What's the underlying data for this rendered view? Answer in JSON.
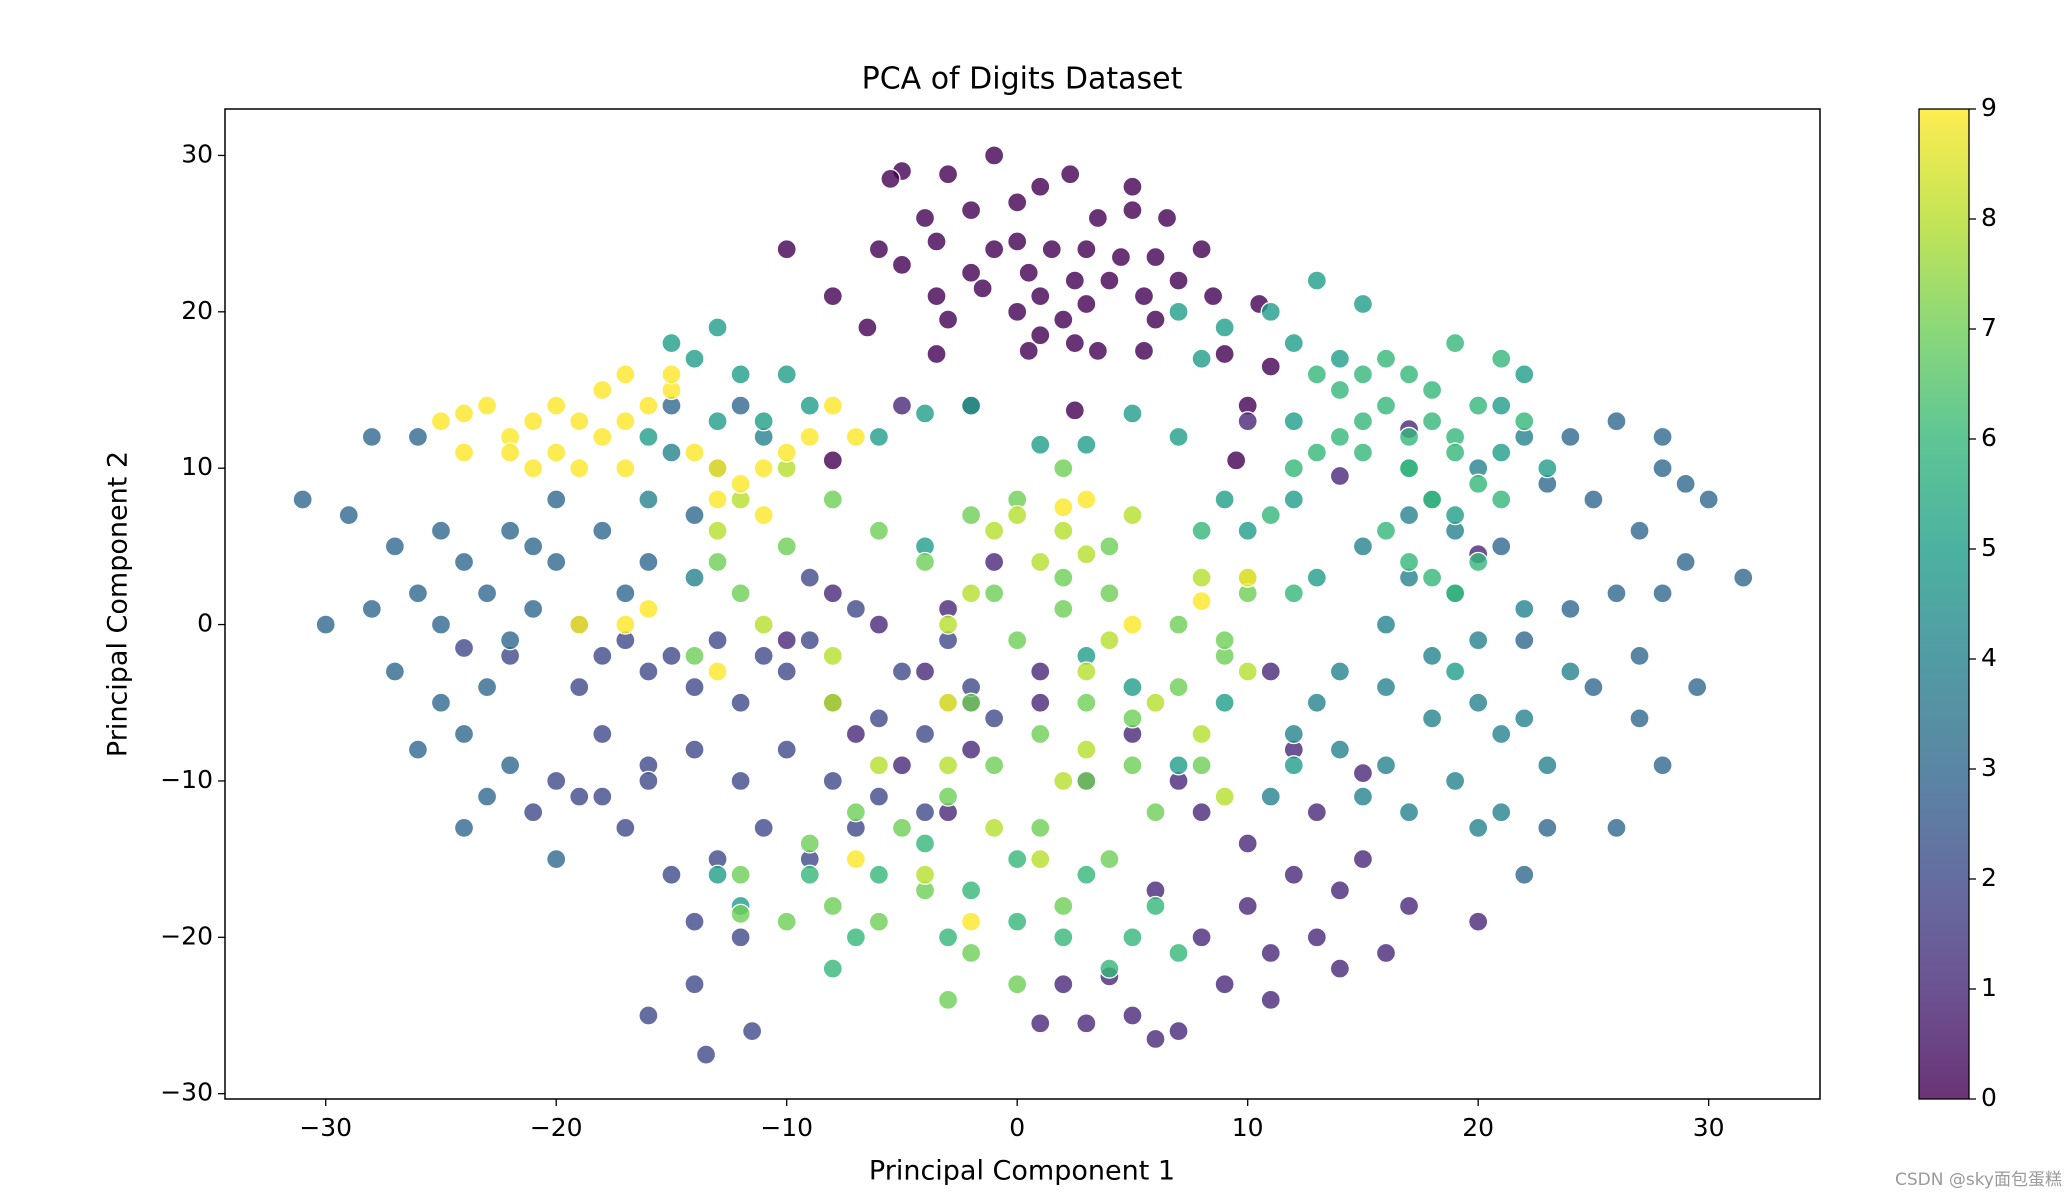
{
  "chart_data": {
    "type": "scatter",
    "title": "PCA of Digits Dataset",
    "xlabel": "Principal Component 1",
    "ylabel": "Principal Component 2",
    "watermark": "CSDN @sky面包蛋糕",
    "colormap": "viridis",
    "alpha": 0.8,
    "edgecolor": "#ffffff",
    "xlim": [
      -34.37,
      34.83
    ],
    "ylim": [
      -30.34,
      32.97
    ],
    "xticks": [
      {
        "value": -30,
        "label": "−30"
      },
      {
        "value": -20,
        "label": "−20"
      },
      {
        "value": -10,
        "label": "−10"
      },
      0,
      10,
      20,
      30
    ],
    "yticks": [
      {
        "value": -30,
        "label": "−30"
      },
      {
        "value": -20,
        "label": "−20"
      },
      {
        "value": -10,
        "label": "−10"
      },
      0,
      10,
      20,
      30
    ],
    "clim": [
      0,
      9
    ],
    "cticks": [
      0,
      1,
      2,
      3,
      4,
      5,
      6,
      7,
      8,
      9
    ],
    "series": [
      {
        "c": 0,
        "x": [
          -5,
          -5.5,
          -3,
          -1,
          1,
          2.3,
          5,
          0,
          -4,
          -2,
          3.5,
          5,
          6.5,
          -10,
          -6,
          -3.5,
          -1,
          0,
          1.5,
          3,
          4.5,
          6,
          8,
          -5,
          -2,
          0.5,
          2.5,
          4,
          7,
          -8,
          -3.5,
          -1.5,
          1,
          3,
          5.5,
          8.5,
          -6.5,
          -3,
          0,
          2,
          6,
          10.5,
          -3.5,
          0.5,
          3.5,
          5.5,
          9,
          11,
          1,
          2.5,
          -2,
          2.5,
          10,
          9.5,
          -8
        ],
        "values": [
          29,
          28.5,
          28.8,
          30,
          28,
          28.8,
          28,
          27,
          26,
          26.5,
          26,
          26.5,
          26,
          24,
          24,
          24.5,
          24,
          24.5,
          24,
          24,
          23.5,
          23.5,
          24,
          23,
          22.5,
          22.5,
          22,
          22,
          22,
          21,
          21,
          21.5,
          21,
          20.5,
          21,
          21,
          19,
          19.5,
          20,
          19.5,
          19.5,
          20.5,
          17.3,
          17.5,
          17.5,
          17.5,
          17.3,
          16.5,
          18.5,
          18,
          14,
          13.7,
          14,
          10.5,
          10.5
        ]
      },
      {
        "c": 1,
        "x": [
          1,
          3,
          5,
          7,
          8,
          10,
          12,
          6,
          8,
          10,
          11,
          9,
          11,
          5,
          6,
          7,
          4,
          3,
          1,
          2,
          13,
          14,
          15,
          17,
          20,
          16,
          14,
          -2,
          -4,
          -3,
          -1,
          -6,
          -8,
          -10,
          -5,
          -7,
          -3,
          11,
          12,
          13,
          15,
          20,
          14,
          17,
          10,
          -5,
          -2,
          1
        ],
        "values": [
          -5,
          -10,
          -7,
          -10,
          -12,
          -14,
          -16,
          -17,
          -20,
          -18,
          -21,
          -23,
          -24,
          -25,
          -26.5,
          -26,
          -22.5,
          -25.5,
          -25.5,
          -23,
          -20,
          -17,
          -15,
          -18,
          -19,
          -21,
          -22,
          -5,
          -3,
          1,
          4,
          0,
          2,
          -1,
          -9,
          -7,
          -12,
          -3,
          -8,
          -12,
          -9.5,
          4.5,
          9.5,
          12.5,
          13,
          14,
          -8,
          -3
        ]
      },
      {
        "c": 2,
        "x": [
          -20,
          -18,
          -16,
          -14,
          -12,
          -10,
          -8,
          -6,
          -4,
          -2,
          -12,
          -14,
          -16,
          -18,
          -10,
          -8,
          -6,
          -4,
          -11,
          -13,
          -15,
          -17,
          -19,
          -21,
          -9,
          -7,
          -15,
          -13,
          -11,
          -19,
          -24,
          -22,
          -17,
          -9,
          -5,
          -3,
          -1,
          -14,
          -12,
          -14,
          -16,
          -13.5,
          -11.5,
          -16,
          -18,
          -7,
          -9
        ],
        "values": [
          -10,
          -11,
          -9,
          -8,
          -10,
          -8,
          -10,
          -6,
          -7,
          -4,
          -5,
          -4,
          -3,
          -2,
          -3,
          -5,
          -11,
          -12,
          -13,
          -15,
          -16,
          -13,
          -11,
          -12,
          -15,
          -13,
          -2,
          -1,
          -2,
          -4,
          -1.5,
          -2,
          -1,
          -1,
          -3,
          -1,
          -6,
          -19,
          -20,
          -23,
          -25,
          -27.5,
          -26,
          -10,
          -7,
          1,
          3
        ]
      },
      {
        "c": 3,
        "x": [
          -31,
          -30,
          -29,
          -28,
          -26,
          -27,
          -25,
          -24,
          -26,
          -28,
          -25,
          -23,
          -22,
          -21,
          -20,
          -22,
          -20,
          -18,
          -17,
          -19,
          -23,
          -25,
          -27,
          -24,
          -22,
          -23,
          -24,
          -20,
          -26,
          -21,
          -16,
          -14,
          -15,
          -12,
          22,
          24,
          26,
          28,
          29,
          27,
          25,
          23,
          28,
          30,
          31.5,
          25,
          27,
          29.5,
          26,
          28,
          23,
          22,
          21,
          24,
          26,
          28,
          29,
          27
        ],
        "values": [
          8,
          0,
          7,
          12,
          12,
          5,
          6,
          4,
          2,
          1,
          0,
          2,
          -1,
          1,
          4,
          6,
          8,
          6,
          2,
          0,
          -4,
          -5,
          -3,
          -7,
          -9,
          -11,
          -13,
          -15,
          -8,
          5,
          4,
          7,
          14,
          14,
          -1,
          1,
          2,
          2,
          4,
          6,
          8,
          9,
          10,
          8,
          3,
          -4,
          -6,
          -4,
          -13,
          -9,
          -13,
          -16,
          5,
          12,
          13,
          12,
          9,
          -2
        ]
      },
      {
        "c": 4,
        "x": [
          15,
          17,
          19,
          16,
          18,
          20,
          22,
          16,
          18,
          20,
          21,
          23,
          19,
          17,
          15,
          20,
          22,
          24,
          13,
          14,
          16,
          18,
          20,
          22,
          17,
          19,
          -14,
          -13,
          -11,
          -15,
          -16,
          11,
          14,
          21,
          12
        ],
        "values": [
          5,
          3,
          2,
          0,
          -2,
          -1,
          1,
          -4,
          -6,
          -5,
          -7,
          -9,
          -10,
          -12,
          -11,
          -13,
          -6,
          -3,
          -5,
          -8,
          -9,
          8,
          10,
          12,
          7,
          6,
          3,
          10,
          12,
          11,
          8,
          -11,
          -3,
          -12,
          -7
        ]
      },
      {
        "c": 5,
        "x": [
          -13,
          -12,
          -14,
          -15,
          -10,
          -9,
          -11,
          -13,
          -16,
          -4,
          -2,
          -6,
          1,
          3,
          5,
          7,
          9,
          10,
          12,
          11,
          12,
          14,
          13,
          15,
          9,
          8,
          7,
          12,
          17,
          19,
          21,
          23,
          22,
          21,
          3,
          5,
          -3,
          -4,
          7,
          9,
          13,
          12,
          19,
          -13,
          -12
        ],
        "values": [
          19,
          16,
          17,
          18,
          16,
          14,
          13,
          13,
          12,
          13.5,
          14,
          12,
          11.5,
          11.5,
          13.5,
          12,
          8,
          6,
          8,
          20,
          18,
          17,
          22,
          20.5,
          19,
          17,
          20,
          13,
          10,
          7,
          11,
          10,
          16,
          14,
          -2,
          -4,
          -5,
          5,
          -9,
          -5,
          3,
          -9,
          -3,
          -16,
          -18
        ]
      },
      {
        "c": 6,
        "x": [
          13,
          14,
          15,
          16,
          17,
          18,
          19,
          16,
          15,
          14,
          13,
          15,
          17,
          18,
          19,
          20,
          21,
          22,
          17,
          18,
          19,
          20,
          21,
          16,
          17,
          18,
          19,
          20,
          12,
          11,
          8,
          10,
          12,
          -4,
          -2,
          0,
          2,
          4,
          6,
          -7,
          -8,
          -9,
          -6,
          -3,
          0,
          3,
          5,
          7
        ],
        "values": [
          16,
          15,
          16,
          17,
          16,
          15,
          18,
          14,
          13,
          12,
          11,
          11,
          12,
          13,
          12,
          14,
          17,
          13,
          10,
          8,
          11,
          9,
          8,
          6,
          4,
          3,
          2,
          4,
          10,
          7,
          6,
          3,
          2,
          -14,
          -17,
          -19,
          -20,
          -22,
          -18,
          -20,
          -22,
          -16,
          -16,
          -20,
          -15,
          -16,
          -20,
          -21
        ]
      },
      {
        "c": 7,
        "x": [
          -9,
          -7,
          -5,
          -3,
          -1,
          1,
          3,
          5,
          7,
          9,
          -8,
          -6,
          -4,
          -2,
          0,
          2,
          4,
          6,
          8,
          -10,
          -12,
          -12,
          -3,
          -2,
          0,
          2,
          4,
          -4,
          -6,
          -8,
          -2,
          0,
          2,
          -1,
          7,
          9,
          10,
          -14,
          -12,
          -10,
          -13,
          4,
          2,
          1,
          3,
          5
        ],
        "values": [
          -14,
          -12,
          -13,
          -11,
          -9,
          -7,
          -5,
          -6,
          -4,
          -2,
          -18,
          -19,
          -17,
          -21,
          -23,
          -18,
          -15,
          -12,
          -9,
          -19,
          -16,
          -18.5,
          -24,
          -5,
          -1,
          1,
          2,
          4,
          6,
          8,
          7,
          8,
          3,
          2,
          0,
          -1,
          2,
          -2,
          2,
          5,
          4,
          5,
          10,
          -13,
          -10,
          -9
        ]
      },
      {
        "c": 8,
        "x": [
          -2,
          1,
          3,
          5,
          -1,
          -3,
          3,
          4,
          6,
          8,
          9,
          3,
          2,
          -1,
          -4,
          -6,
          -8,
          -12,
          -10,
          -13,
          -11,
          8,
          10,
          -8,
          2,
          0,
          -3,
          1
        ],
        "values": [
          2,
          4,
          4.5,
          7,
          6,
          0,
          -3,
          -1,
          -5,
          -7,
          -11,
          -8,
          -10,
          -13,
          -16,
          -9,
          -5,
          8,
          10,
          6,
          0,
          3,
          -3,
          -2,
          6,
          7,
          -9,
          -15
        ]
      },
      {
        "c": 9,
        "x": [
          -25,
          -24,
          -23,
          -22,
          -21,
          -20,
          -19,
          -18,
          -17,
          -16,
          -15,
          -18,
          -20,
          -22,
          -24,
          -21,
          -19,
          -17,
          -14,
          -13,
          -12,
          -11,
          -10,
          -9,
          -8,
          -7,
          -17,
          -15,
          -13,
          -11,
          -16,
          -17,
          -19,
          -3,
          2,
          3,
          8,
          10,
          5,
          -7,
          -2,
          -13
        ],
        "values": [
          13,
          13.5,
          14,
          12,
          13,
          14,
          13,
          15,
          16,
          14,
          15,
          12,
          11,
          11,
          11,
          10,
          10,
          10,
          11,
          10,
          9,
          10,
          11,
          12,
          14,
          12,
          13,
          16,
          8,
          7,
          1,
          0,
          0,
          -5,
          7.5,
          8,
          1.5,
          3,
          0,
          -15,
          -19,
          -3
        ]
      }
    ]
  }
}
